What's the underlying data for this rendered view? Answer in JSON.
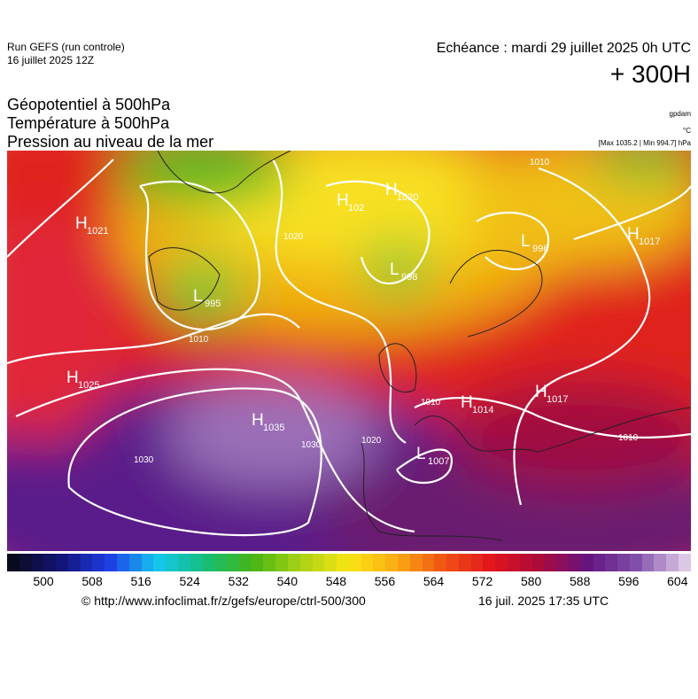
{
  "header": {
    "run": "Run GEFS (run controle)",
    "date": "16 juillet 2025 12Z",
    "valid": "Echéance : mardi 29 juillet 2025 0h UTC",
    "lead": "+ 300H",
    "titles": [
      "Géopotentiel à 500hPa",
      "Température à 500hPa",
      "Pression au niveau de la mer"
    ],
    "units": [
      "gpdam",
      "°C",
      "[Max 1035.2 | Min 994.7] hPa"
    ]
  },
  "map": {
    "centers": [
      {
        "letter": "H",
        "value": "1021"
      },
      {
        "letter": "L",
        "value": "995"
      },
      {
        "letter": "H",
        "value": "102"
      },
      {
        "letter": "H",
        "value": "1020"
      },
      {
        "letter": "L",
        "value": "998"
      },
      {
        "letter": "L",
        "value": "996"
      },
      {
        "letter": "H",
        "value": "1017"
      },
      {
        "letter": "H",
        "value": "1025"
      },
      {
        "letter": "H",
        "value": "1035"
      },
      {
        "letter": "L",
        "value": "1007"
      },
      {
        "letter": "H",
        "value": "1014"
      },
      {
        "letter": "H",
        "value": "1017"
      }
    ],
    "isobar_labels": [
      "1010",
      "1010",
      "1010",
      "1030",
      "1030",
      "1020",
      "1010",
      "1020"
    ]
  },
  "colorbar": {
    "ticks": [
      500,
      508,
      516,
      524,
      532,
      540,
      548,
      556,
      564,
      572,
      580,
      588,
      596,
      604
    ]
  },
  "footer": {
    "source": "© http://www.infoclimat.fr/z/gefs/europe/ctrl-500/300",
    "generated": "16 juil. 2025 17:35 UTC"
  }
}
